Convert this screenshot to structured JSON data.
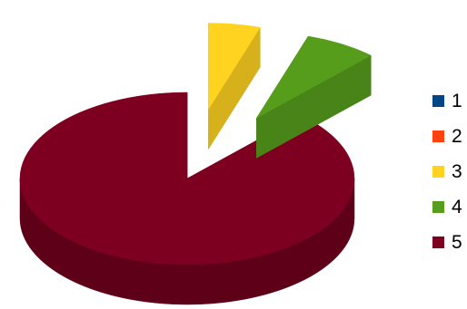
{
  "chart_data": {
    "type": "pie",
    "style": "3d-exploded",
    "categories": [
      "1",
      "2",
      "3",
      "4",
      "5"
    ],
    "values": [
      0,
      0,
      5,
      7,
      88
    ],
    "colors": [
      "#004586",
      "#FF420E",
      "#FFD320",
      "#579D1C",
      "#7E0021"
    ],
    "exploded": [
      "3",
      "4"
    ],
    "title": "",
    "legend_position": "right"
  }
}
